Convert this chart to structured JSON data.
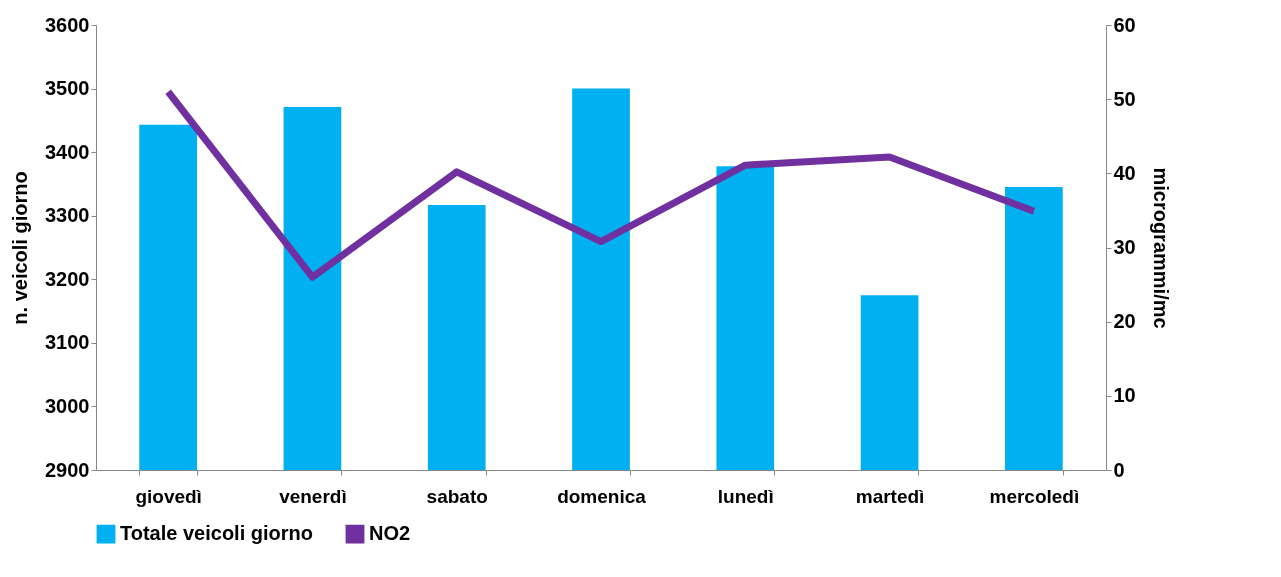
{
  "chart_data": {
    "type": "bar",
    "categories": [
      "giovedì",
      "venerdì",
      "sabato",
      "domenica",
      "lunedì",
      "martedì",
      "mercoledì"
    ],
    "series": [
      {
        "name": "Totale veicoli giorno",
        "color": "#00b0f0",
        "values": [
          3443,
          3471,
          3317,
          3500,
          3378,
          3175,
          3345
        ]
      },
      {
        "name": "NO2",
        "type": "line",
        "axis": "y2",
        "color": "#7030a0",
        "values": [
          51,
          26,
          40.2,
          30.8,
          41.1,
          42.2,
          34.9
        ]
      }
    ],
    "ylabel": "n. veicoli giorno",
    "y2label": "microgrammi/mc",
    "ylim": [
      2900,
      3600
    ],
    "yticks": [
      2900,
      3000,
      3100,
      3200,
      3300,
      3400,
      3500,
      3600
    ],
    "y2lim": [
      0,
      60
    ],
    "y2ticks": [
      0,
      10,
      20,
      30,
      40,
      50,
      60
    ],
    "grid": false,
    "legend": "bottom",
    "marker": "none",
    "line_style": "solid"
  }
}
